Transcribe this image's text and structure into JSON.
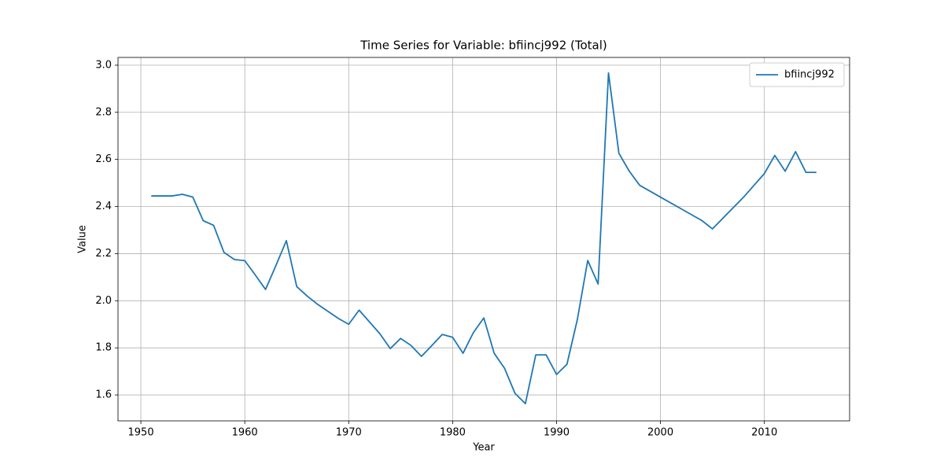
{
  "chart_data": {
    "type": "line",
    "title": "Time Series for Variable: bfiincj992 (Total)",
    "x_label": "Year",
    "y_label": "Value",
    "x": [
      1951,
      1952,
      1953,
      1954,
      1955,
      1956,
      1957,
      1958,
      1959,
      1960,
      1961,
      1962,
      1963,
      1964,
      1965,
      1966,
      1967,
      1968,
      1969,
      1970,
      1971,
      1972,
      1973,
      1974,
      1975,
      1976,
      1977,
      1978,
      1979,
      1980,
      1981,
      1982,
      1983,
      1984,
      1985,
      1986,
      1987,
      1988,
      1989,
      1990,
      1991,
      1992,
      1993,
      1994,
      1995,
      1996,
      1997,
      1998,
      1999,
      2000,
      2001,
      2002,
      2003,
      2004,
      2005,
      2006,
      2007,
      2008,
      2009,
      2010,
      2011,
      2012,
      2013,
      2014,
      2015
    ],
    "series": [
      {
        "name": "bfiincj992",
        "color": "#1f77b4",
        "values": [
          2.445,
          2.445,
          2.445,
          2.452,
          2.44,
          2.34,
          2.32,
          2.205,
          2.175,
          2.17,
          2.11,
          2.048,
          2.15,
          2.255,
          2.06,
          2.02,
          1.985,
          1.955,
          1.925,
          1.9,
          1.96,
          1.91,
          1.86,
          1.797,
          1.84,
          1.81,
          1.764,
          1.81,
          1.857,
          1.845,
          1.777,
          1.865,
          1.927,
          1.777,
          1.713,
          1.607,
          1.563,
          1.77,
          1.77,
          1.687,
          1.73,
          1.92,
          2.171,
          2.071,
          2.967,
          2.626,
          2.55,
          2.49,
          2.465,
          2.44,
          2.415,
          2.39,
          2.365,
          2.34,
          2.305,
          2.35,
          2.395,
          2.44,
          2.49,
          2.54,
          2.617,
          2.55,
          2.633,
          2.545,
          2.545
        ]
      }
    ],
    "xlim": [
      1947.8,
      2018.2
    ],
    "xticks": [
      1950,
      1960,
      1970,
      1980,
      1990,
      2000,
      2010
    ],
    "ylim": [
      1.49,
      3.033
    ],
    "yticks": [
      1.6,
      1.8,
      {
        "value": 2.0,
        "label": "2.0"
      },
      2.2,
      2.4,
      2.6,
      2.8,
      {
        "value": 3.0,
        "label": "3.0"
      }
    ],
    "grid": true,
    "legend": "upper right"
  }
}
